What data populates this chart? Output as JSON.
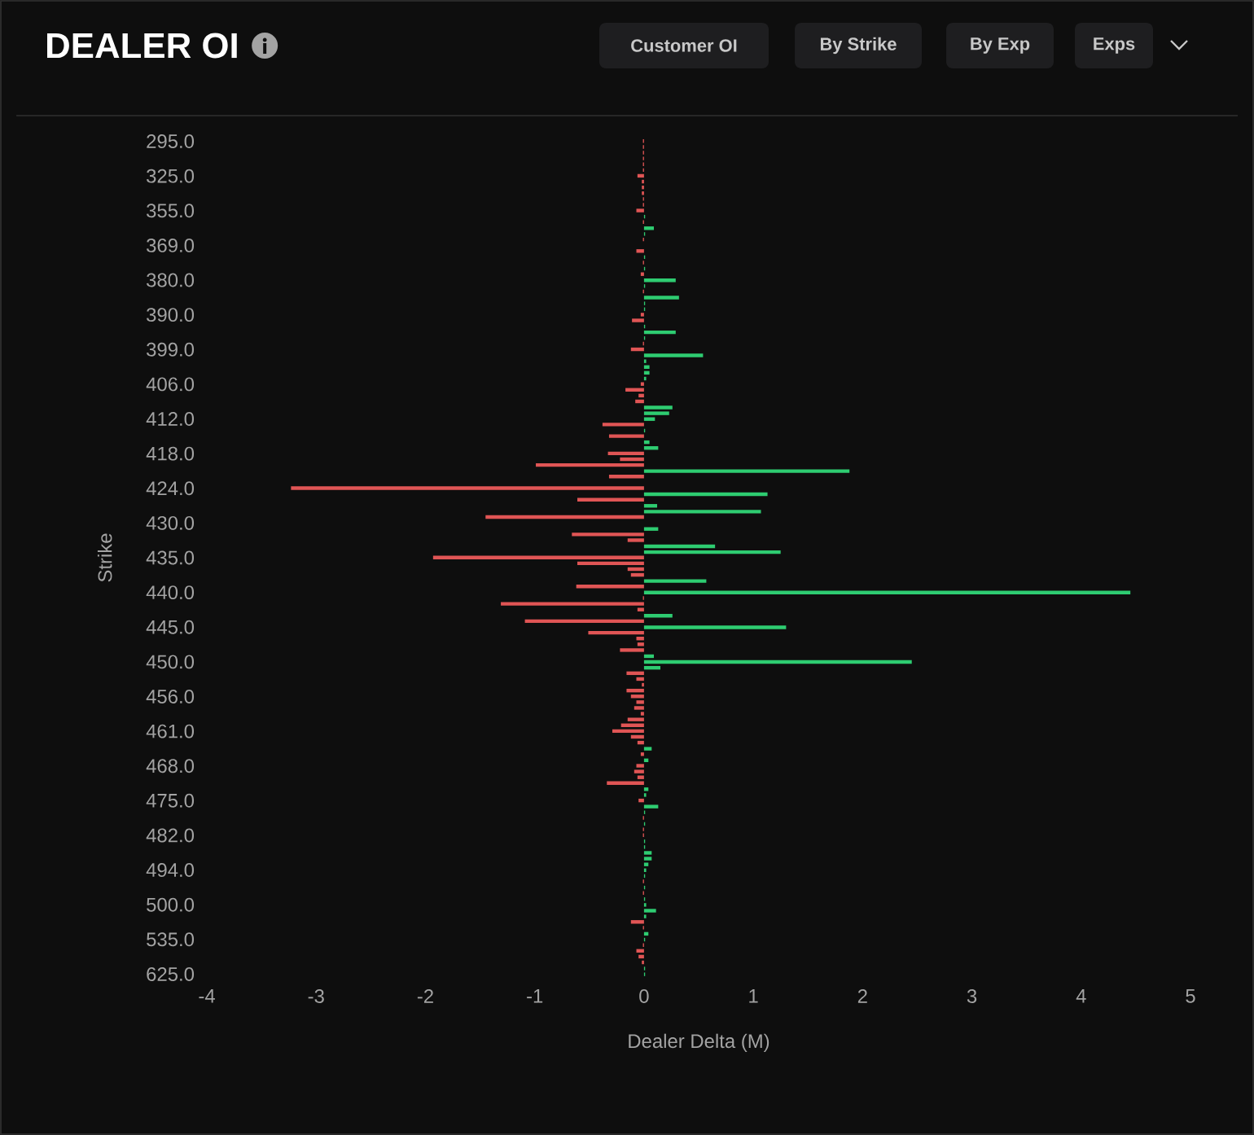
{
  "chart_data": {
    "type": "bar",
    "orientation": "horizontal",
    "title": "DEALER OI",
    "xlabel": "Dealer Delta (M)",
    "ylabel": "Strike",
    "annotations": [
      "Customer OI",
      "By Strike",
      "By Exp",
      "Exps"
    ],
    "categories": [
      "295.0",
      null,
      null,
      null,
      null,
      null,
      "325.0",
      null,
      null,
      null,
      null,
      null,
      "355.0",
      null,
      null,
      null,
      null,
      null,
      "369.0",
      null,
      null,
      null,
      null,
      null,
      "380.0",
      null,
      null,
      null,
      null,
      null,
      "390.0",
      null,
      null,
      null,
      null,
      null,
      "399.0",
      null,
      null,
      null,
      null,
      null,
      "406.0",
      null,
      null,
      null,
      null,
      null,
      "412.0",
      null,
      null,
      null,
      null,
      null,
      "418.0",
      null,
      null,
      null,
      null,
      null,
      "424.0",
      null,
      null,
      null,
      null,
      null,
      "430.0",
      null,
      null,
      null,
      null,
      null,
      "435.0",
      null,
      null,
      null,
      null,
      null,
      "440.0",
      null,
      null,
      null,
      null,
      null,
      "445.0",
      null,
      null,
      null,
      null,
      null,
      "450.0",
      null,
      null,
      null,
      null,
      null,
      "456.0",
      null,
      null,
      null,
      null,
      null,
      "461.0",
      null,
      null,
      null,
      null,
      null,
      "468.0",
      null,
      null,
      null,
      null,
      null,
      "475.0",
      null,
      null,
      null,
      null,
      null,
      "482.0",
      null,
      null,
      null,
      null,
      null,
      "494.0",
      null,
      null,
      null,
      null,
      null,
      "500.0",
      null,
      null,
      null,
      null,
      null,
      "535.0",
      null,
      null,
      null,
      null,
      null,
      "625.0"
    ],
    "series": [
      {
        "color": "#e05555",
        "values": [
          -0.01,
          -0.01,
          -0.01,
          -0.01,
          -0.01,
          -0.01,
          -0.06,
          -0.02,
          -0.02,
          -0.02,
          -0.01,
          -0.01,
          -0.07,
          null,
          -0.01,
          null,
          null,
          -0.01,
          null,
          -0.07,
          null,
          -0.01,
          null,
          -0.03,
          null,
          null,
          -0.01,
          null,
          null,
          null,
          -0.03,
          -0.11,
          null,
          null,
          null,
          -0.01,
          -0.12,
          null,
          null,
          null,
          null,
          null,
          -0.03,
          -0.17,
          -0.05,
          -0.08,
          null,
          null,
          null,
          -0.38,
          null,
          -0.32,
          null,
          null,
          -0.33,
          -0.22,
          -0.99,
          null,
          -0.32,
          null,
          -3.23,
          null,
          -0.61,
          null,
          null,
          -1.45,
          null,
          null,
          -0.66,
          -0.15,
          null,
          null,
          -1.93,
          -0.61,
          -0.15,
          -0.12,
          null,
          -0.62,
          null,
          -0.01,
          -1.31,
          -0.06,
          null,
          -1.09,
          null,
          -0.51,
          -0.07,
          -0.06,
          -0.22,
          null,
          null,
          null,
          -0.16,
          -0.07,
          -0.02,
          -0.16,
          -0.12,
          -0.07,
          -0.09,
          -0.03,
          -0.15,
          -0.21,
          -0.29,
          -0.12,
          -0.06,
          null,
          -0.03,
          null,
          -0.07,
          -0.09,
          -0.06,
          -0.34,
          null,
          null,
          -0.05,
          null,
          null,
          -0.01,
          null,
          -0.01,
          -0.01,
          null,
          null,
          null,
          null,
          null,
          null,
          null,
          -0.01,
          null,
          -0.01,
          null,
          null,
          null,
          null,
          -0.12,
          -0.01,
          null,
          null,
          -0.01,
          -0.07,
          -0.05,
          -0.02,
          null,
          null
        ]
      },
      {
        "color": "#2ecc71",
        "values": [
          null,
          null,
          null,
          null,
          null,
          null,
          null,
          null,
          null,
          null,
          null,
          null,
          null,
          0.01,
          null,
          0.09,
          0.01,
          null,
          null,
          null,
          0.01,
          null,
          0.01,
          null,
          0.29,
          0.01,
          null,
          0.32,
          0.01,
          0.01,
          null,
          null,
          0.01,
          0.29,
          0.01,
          null,
          null,
          0.54,
          0.02,
          0.05,
          0.05,
          0.02,
          null,
          null,
          null,
          null,
          0.26,
          0.23,
          0.1,
          null,
          0.01,
          null,
          0.05,
          0.13,
          null,
          null,
          null,
          1.88,
          null,
          null,
          null,
          1.13,
          null,
          0.12,
          1.07,
          null,
          null,
          0.13,
          null,
          null,
          0.65,
          1.25,
          null,
          null,
          null,
          null,
          0.57,
          null,
          4.45,
          null,
          null,
          null,
          0.26,
          null,
          1.3,
          null,
          null,
          null,
          null,
          0.09,
          2.45,
          0.15,
          null,
          null,
          null,
          null,
          null,
          null,
          null,
          null,
          null,
          null,
          null,
          null,
          null,
          0.07,
          null,
          0.04,
          null,
          null,
          null,
          null,
          0.04,
          0.02,
          null,
          0.13,
          0.01,
          null,
          0.01,
          null,
          null,
          0.01,
          0.01,
          0.07,
          0.07,
          0.04,
          0.02,
          0.01,
          null,
          0.01,
          null,
          0.01,
          0.02,
          0.11,
          0.02,
          null,
          null,
          0.04,
          0.01,
          null,
          null,
          null,
          null,
          0.01,
          0.01
        ]
      }
    ],
    "xlim": [
      -4,
      5
    ],
    "xticks": [
      -4,
      -3,
      -2,
      -1,
      0,
      1,
      2,
      3,
      4,
      5
    ],
    "grid": false
  }
}
